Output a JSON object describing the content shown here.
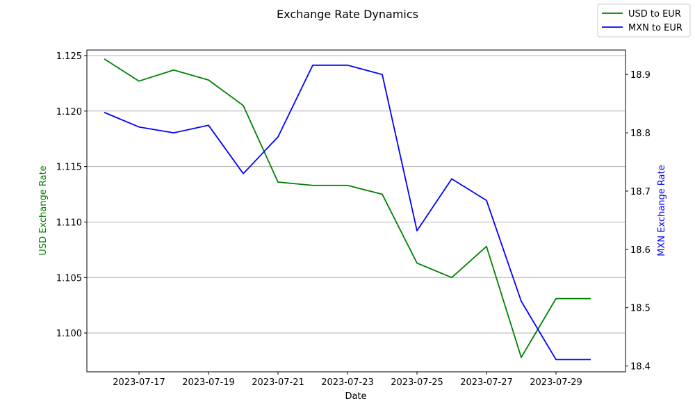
{
  "chart_data": {
    "type": "line",
    "title": "Exchange Rate Dynamics",
    "xlabel": "Date",
    "ylabel_left": "USD Exchange Rate",
    "ylabel_right": "MXN Exchange Rate",
    "x": [
      "2023-07-16",
      "2023-07-17",
      "2023-07-18",
      "2023-07-19",
      "2023-07-20",
      "2023-07-21",
      "2023-07-22",
      "2023-07-23",
      "2023-07-24",
      "2023-07-25",
      "2023-07-26",
      "2023-07-27",
      "2023-07-28",
      "2023-07-29",
      "2023-07-30"
    ],
    "x_ticks": [
      "2023-07-17",
      "2023-07-19",
      "2023-07-21",
      "2023-07-23",
      "2023-07-25",
      "2023-07-27",
      "2023-07-29"
    ],
    "xlim": [
      "2023-07-15T12:00",
      "2023-07-31T00:00"
    ],
    "series": [
      {
        "name": "USD to EUR",
        "axis": "left",
        "color": "#008000",
        "values": [
          1.1247,
          1.1227,
          1.1237,
          1.1228,
          1.1205,
          1.1136,
          1.1133,
          1.1133,
          1.1125,
          1.1063,
          1.105,
          1.1078,
          1.0978,
          1.1031,
          1.1031
        ]
      },
      {
        "name": "MXN to EUR",
        "axis": "right",
        "color": "#0000ff",
        "values": [
          18.835,
          18.81,
          18.8,
          18.813,
          18.73,
          18.793,
          18.916,
          18.916,
          18.9,
          18.632,
          18.721,
          18.684,
          18.511,
          18.411,
          18.411
        ]
      }
    ],
    "ylim_left": [
      1.0965,
      1.1255
    ],
    "yticks_left": [
      "1.100",
      "1.105",
      "1.110",
      "1.115",
      "1.120",
      "1.125"
    ],
    "ylim_right": [
      18.39,
      18.942
    ],
    "yticks_right": [
      "18.4",
      "18.5",
      "18.6",
      "18.7",
      "18.8",
      "18.9"
    ],
    "grid": "horizontal",
    "legend_position": "top-right",
    "label_colors": {
      "left": "#008000",
      "right": "#0000ff"
    }
  }
}
